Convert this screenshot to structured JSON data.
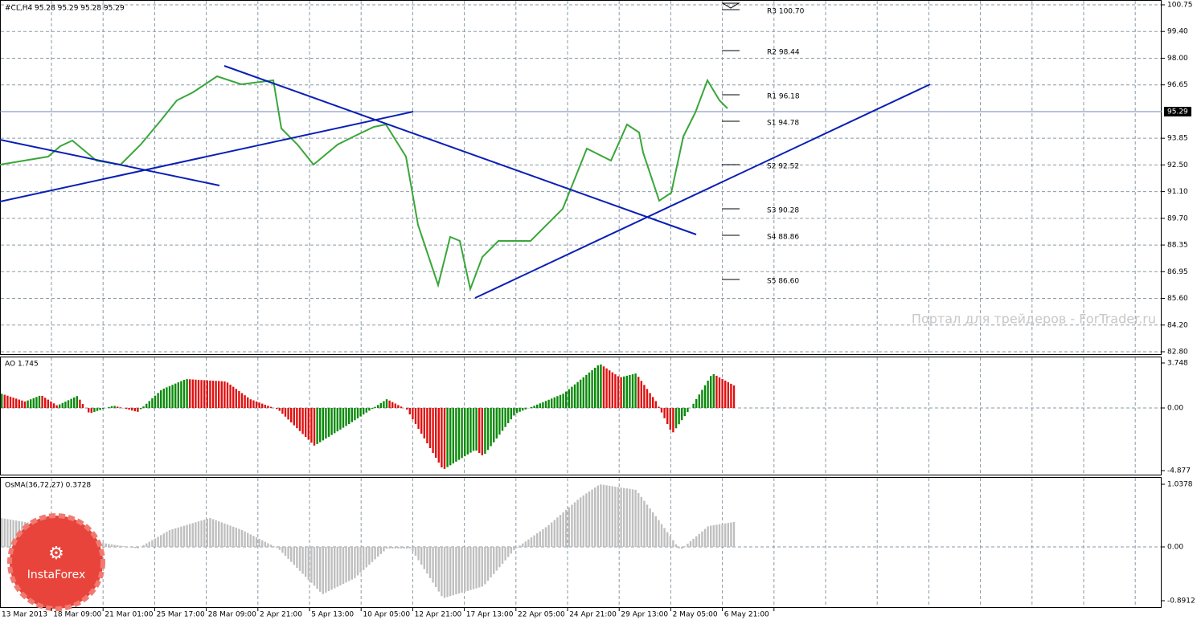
{
  "header": "#CL,H4  95.28 95.29 95.28 95.29",
  "price_axis": [
    "100.75",
    "99.40",
    "98.00",
    "96.65",
    "95.29",
    "93.85",
    "92.50",
    "91.10",
    "89.70",
    "88.35",
    "86.95",
    "85.60",
    "84.20",
    "82.80"
  ],
  "pivots": [
    "R3 100.70",
    "R2 98.44",
    "R1 96.18",
    "S1 94.78",
    "S2 92.52",
    "S3 90.28",
    "S4 88.86",
    "S5 86.60"
  ],
  "ao": {
    "label": "AO 1.745",
    "axis": [
      "3.748",
      "0.00",
      "-4.877"
    ]
  },
  "osma": {
    "label": "OsMA(36,72,27) 0.3728",
    "axis": [
      "1.0378",
      "0.00",
      "-0.8912"
    ]
  },
  "time_axis": [
    "13 Mar 2013",
    "18 Mar 09:00",
    "21 Mar 01:00",
    "25 Mar 17:00",
    "28 Mar 09:00",
    "2 Apr 21:00",
    "5 Apr 13:00",
    "10 Apr 05:00",
    "12 Apr 21:00",
    "17 Apr 13:00",
    "22 Apr 05:00",
    "24 Apr 21:00",
    "29 Apr 13:00",
    "2 May 05:00",
    "6 May 21:00"
  ],
  "watermark": "Портал для трейдеров - ForTrader.ru",
  "logo": "InstaForex"
}
